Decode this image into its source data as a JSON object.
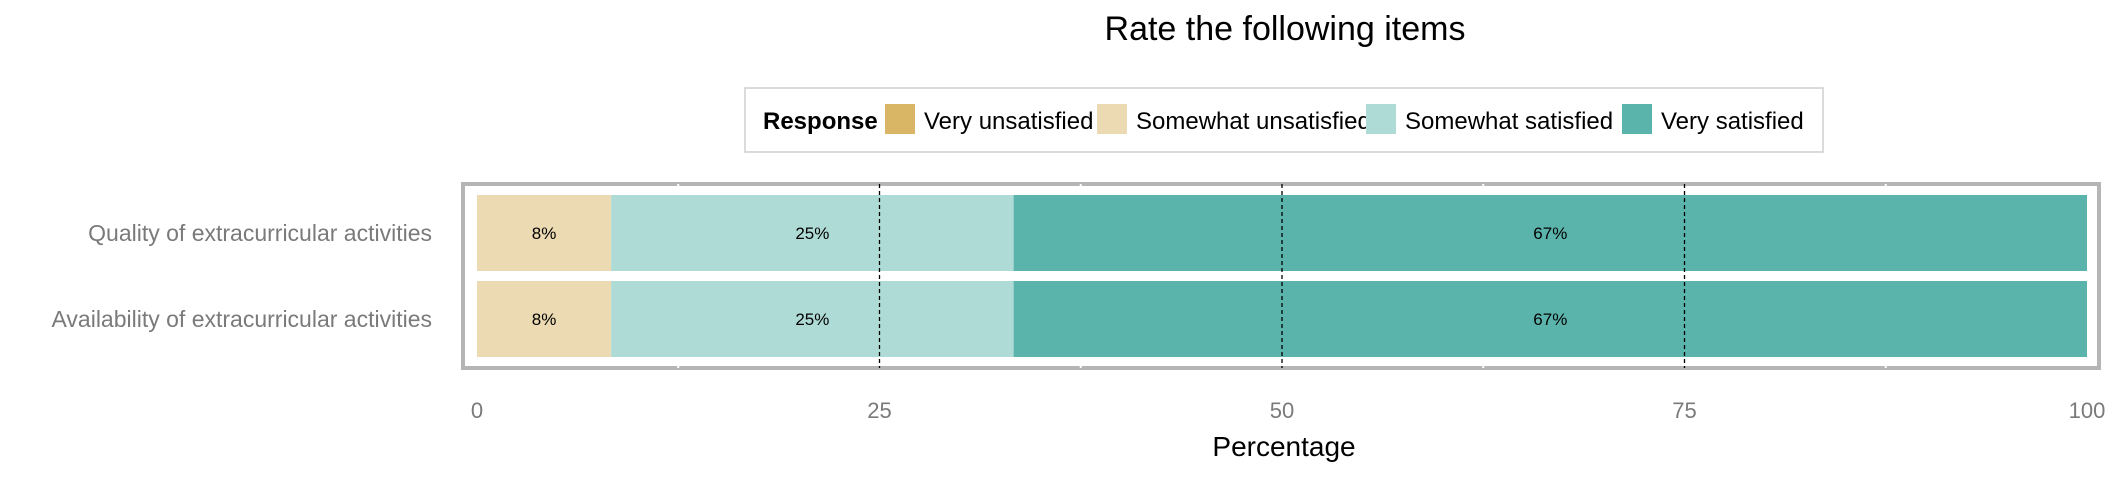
{
  "chart_data": {
    "type": "bar",
    "orientation": "horizontal",
    "stacked": true,
    "title": "Rate the following items",
    "xlabel": "Percentage",
    "ylabel": "",
    "xlim": [
      0,
      100
    ],
    "x_ticks": [
      "0",
      "25",
      "50",
      "75",
      "100"
    ],
    "grid": true,
    "legend_title": "Response",
    "legend_position": "top",
    "categories": [
      "Quality of extracurricular activities",
      "Availability of extracurricular activities"
    ],
    "series": [
      {
        "name": "Very unsatisfied",
        "color": "#d9b566",
        "values": [
          0,
          0
        ],
        "labels": [
          "",
          ""
        ]
      },
      {
        "name": "Somewhat unsatisfied",
        "color": "#ebdab2",
        "values": [
          8.33,
          8.33
        ],
        "labels": [
          "8%",
          "8%"
        ]
      },
      {
        "name": "Somewhat satisfied",
        "color": "#afdbd7",
        "values": [
          25,
          25
        ],
        "labels": [
          "25%",
          "25%"
        ]
      },
      {
        "name": "Very satisfied",
        "color": "#5bb4ac",
        "values": [
          66.67,
          66.67
        ],
        "labels": [
          "67%",
          "67%"
        ]
      }
    ]
  }
}
